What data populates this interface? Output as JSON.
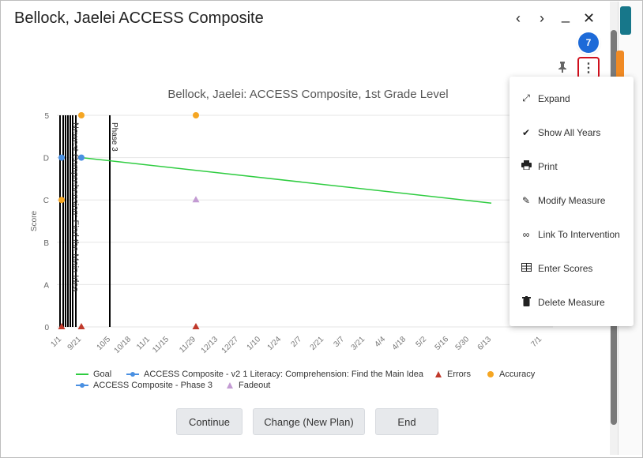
{
  "window": {
    "title": "Bellock, Jaelei ACCESS Composite",
    "prev_label": "‹",
    "next_label": "›",
    "minimize_label": "_",
    "close_label": "✕"
  },
  "step_badge": "7",
  "chart_data": {
    "type": "line",
    "title": "Bellock, Jaelei: ACCESS Composite, 1st Grade Level",
    "ylabel": "Score",
    "y_categories": [
      "0",
      "A",
      "B",
      "C",
      "D",
      "5"
    ],
    "x_ticks": [
      "1/1",
      "9/21",
      "10/5",
      "10/18",
      "11/1",
      "11/15",
      "11/29",
      "12/13",
      "12/27",
      "1/10",
      "1/24",
      "2/7",
      "2/21",
      "3/7",
      "3/21",
      "4/4",
      "4/18",
      "5/2",
      "5/16",
      "5/30",
      "6/13",
      "7/1"
    ],
    "phase_label": "Phase 3",
    "vertical_note_text": "Newest Comprehension: Find the Main Idea",
    "series": [
      {
        "name": "Goal",
        "color": "#2ecc40",
        "from": {
          "x": "9/21",
          "y": "D"
        },
        "to": {
          "x": "6/13",
          "y": "C"
        }
      },
      {
        "name": "ACCESS Composite - v2 1 Literacy: Comprehension: Find the Main Idea",
        "color": "#4a90e2",
        "points": [
          {
            "x": "1/1",
            "y": "D"
          }
        ]
      },
      {
        "name": "Errors",
        "color": "#c0392b",
        "points": [
          {
            "x": "1/1",
            "y": "0"
          },
          {
            "x": "9/21",
            "y": "0"
          },
          {
            "x": "11/29",
            "y": "0"
          }
        ]
      },
      {
        "name": "Accuracy",
        "color": "#f5a623",
        "points": [
          {
            "x": "1/1",
            "y": "C"
          },
          {
            "x": "9/21",
            "y": "5"
          },
          {
            "x": "11/29",
            "y": "5"
          }
        ]
      },
      {
        "name": "ACCESS Composite - Phase 3",
        "color": "#4a90e2",
        "points": [
          {
            "x": "9/21",
            "y": "D"
          }
        ]
      },
      {
        "name": "Fadeout",
        "color": "#c39bd3",
        "points": [
          {
            "x": "11/29",
            "y": "C"
          }
        ]
      }
    ]
  },
  "menu": {
    "items": [
      {
        "label": "Expand",
        "icon": "expand-icon"
      },
      {
        "label": "Show All Years",
        "icon": "double-check-icon"
      },
      {
        "label": "Print",
        "icon": "print-icon"
      },
      {
        "label": "Modify Measure",
        "icon": "edit-icon"
      },
      {
        "label": "Link To Intervention",
        "icon": "link-icon"
      },
      {
        "label": "Enter Scores",
        "icon": "table-icon"
      },
      {
        "label": "Delete Measure",
        "icon": "trash-icon"
      }
    ]
  },
  "buttons": {
    "continue": "Continue",
    "change": "Change (New Plan)",
    "end": "End"
  },
  "colors": {
    "accent": "#17778a",
    "highlight": "#d0101d",
    "badge": "#1d6ad8"
  }
}
